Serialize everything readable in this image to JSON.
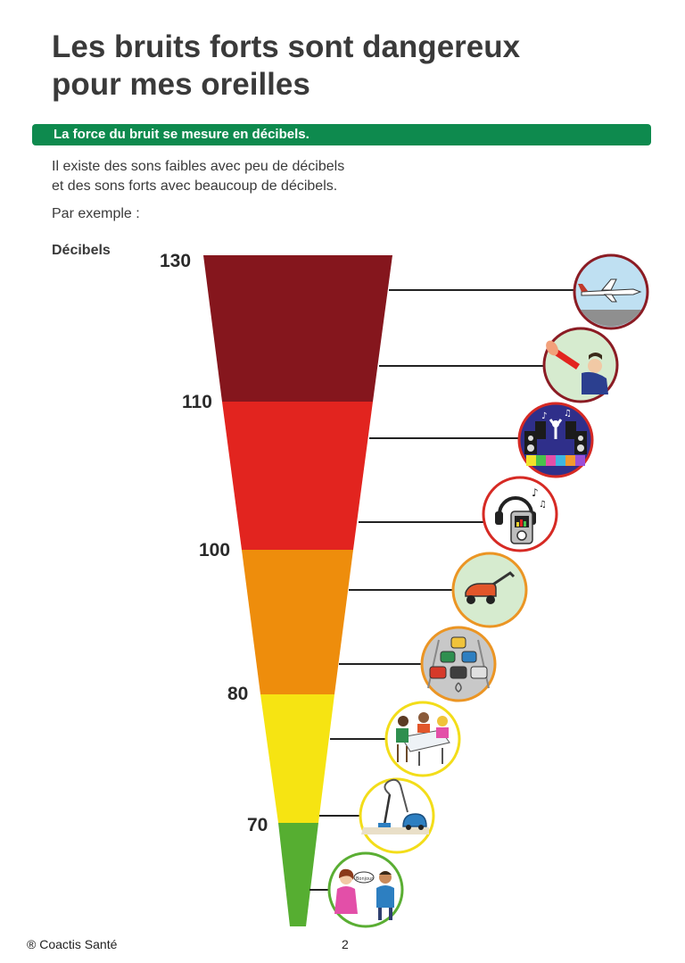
{
  "title": {
    "line1": "Les bruits forts sont dangereux",
    "line2": "pour mes oreilles"
  },
  "banner": "La force du bruit se mesure en décibels.",
  "intro": {
    "line1": "Il existe des sons faibles avec peu de décibels",
    "line2": "et des sons forts avec beaucoup de décibels."
  },
  "example": "Par exemple :",
  "scale": {
    "title": "Décibels",
    "labels": [
      "130",
      "110",
      "100",
      "80",
      "70"
    ],
    "colors": [
      "#85161d",
      "#e2241f",
      "#ee8d0c",
      "#f6e412",
      "#56ae31"
    ]
  },
  "examples": [
    {
      "name": "airplane",
      "ring": "#8b1c24",
      "bg": "#bfe0f2"
    },
    {
      "name": "trumpet",
      "ring": "#8b1c24",
      "bg": "#d6ebcf"
    },
    {
      "name": "concert",
      "ring": "#d62a24",
      "bg": "#2f2f8a"
    },
    {
      "name": "headphones",
      "ring": "#d62a24",
      "bg": "#ffffff"
    },
    {
      "name": "lawnmower",
      "ring": "#eb9524",
      "bg": "#d6ebcf"
    },
    {
      "name": "traffic",
      "ring": "#eb9524",
      "bg": "#c8c8c8"
    },
    {
      "name": "restaurant",
      "ring": "#f3dd1a",
      "bg": "#ffffff"
    },
    {
      "name": "vacuum",
      "ring": "#f3dd1a",
      "bg": "#ffffff"
    },
    {
      "name": "conversation",
      "ring": "#5aae33",
      "bg": "#ffffff"
    }
  ],
  "footer": {
    "copyright": "® Coactis Santé",
    "page": "2"
  }
}
